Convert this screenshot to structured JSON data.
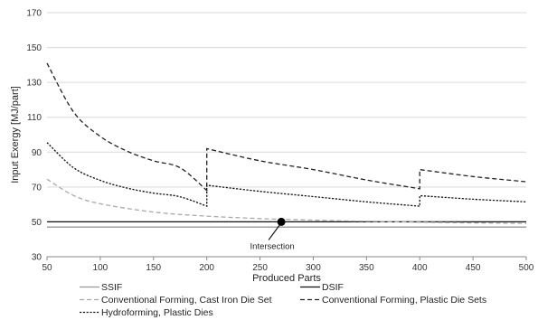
{
  "chart_data": {
    "type": "line",
    "title": "",
    "xlabel": "Produced Parts",
    "ylabel": "Input Exergy [MJ/part]",
    "xlim": [
      50,
      500
    ],
    "ylim": [
      30,
      170
    ],
    "x_ticks": [
      50,
      100,
      150,
      200,
      250,
      300,
      350,
      400,
      450,
      500
    ],
    "y_ticks": [
      30,
      50,
      70,
      90,
      110,
      130,
      150,
      170
    ],
    "grid": "horizontal",
    "legend_position": "bottom",
    "series": [
      {
        "name": "SSIF",
        "style": "solid",
        "color": "#999999",
        "x": [
          50,
          500
        ],
        "y": [
          47,
          47
        ]
      },
      {
        "name": "DSIF",
        "style": "solid",
        "color": "#111111",
        "x": [
          50,
          500
        ],
        "y": [
          50,
          50
        ]
      },
      {
        "name": "Conventional Forming, Cast Iron Die Set",
        "style": "dashed",
        "color": "#aaaaaa",
        "x": [
          50,
          75,
          100,
          150,
          200,
          250,
          300,
          350,
          400,
          450,
          500
        ],
        "y": [
          74.5,
          65.1,
          60.4,
          55.6,
          53.3,
          51.9,
          51.0,
          50.3,
          49.8,
          49.4,
          49.1
        ]
      },
      {
        "name": "Conventional Forming, Plastic Die Sets",
        "style": "dashed",
        "color": "#222222",
        "x": [
          50,
          75,
          100,
          125,
          150,
          175,
          200,
          200,
          250,
          300,
          350,
          400,
          400,
          450,
          500
        ],
        "y": [
          141,
          113,
          99,
          90.6,
          85,
          81,
          68,
          92,
          85,
          80,
          74,
          69,
          80,
          76,
          73
        ]
      },
      {
        "name": "Hydroforming, Plastic Dies",
        "style": "dotted",
        "color": "#111111",
        "x": [
          50,
          75,
          100,
          125,
          150,
          175,
          200,
          200,
          250,
          300,
          350,
          400,
          400,
          450,
          500
        ],
        "y": [
          95.5,
          81,
          73.8,
          69.4,
          66.5,
          64.4,
          59,
          71,
          67.5,
          64.5,
          61.5,
          59,
          65,
          63,
          61.5
        ]
      }
    ],
    "annotations": [
      {
        "text": "Intersection",
        "x": 270,
        "y": 50
      }
    ]
  }
}
